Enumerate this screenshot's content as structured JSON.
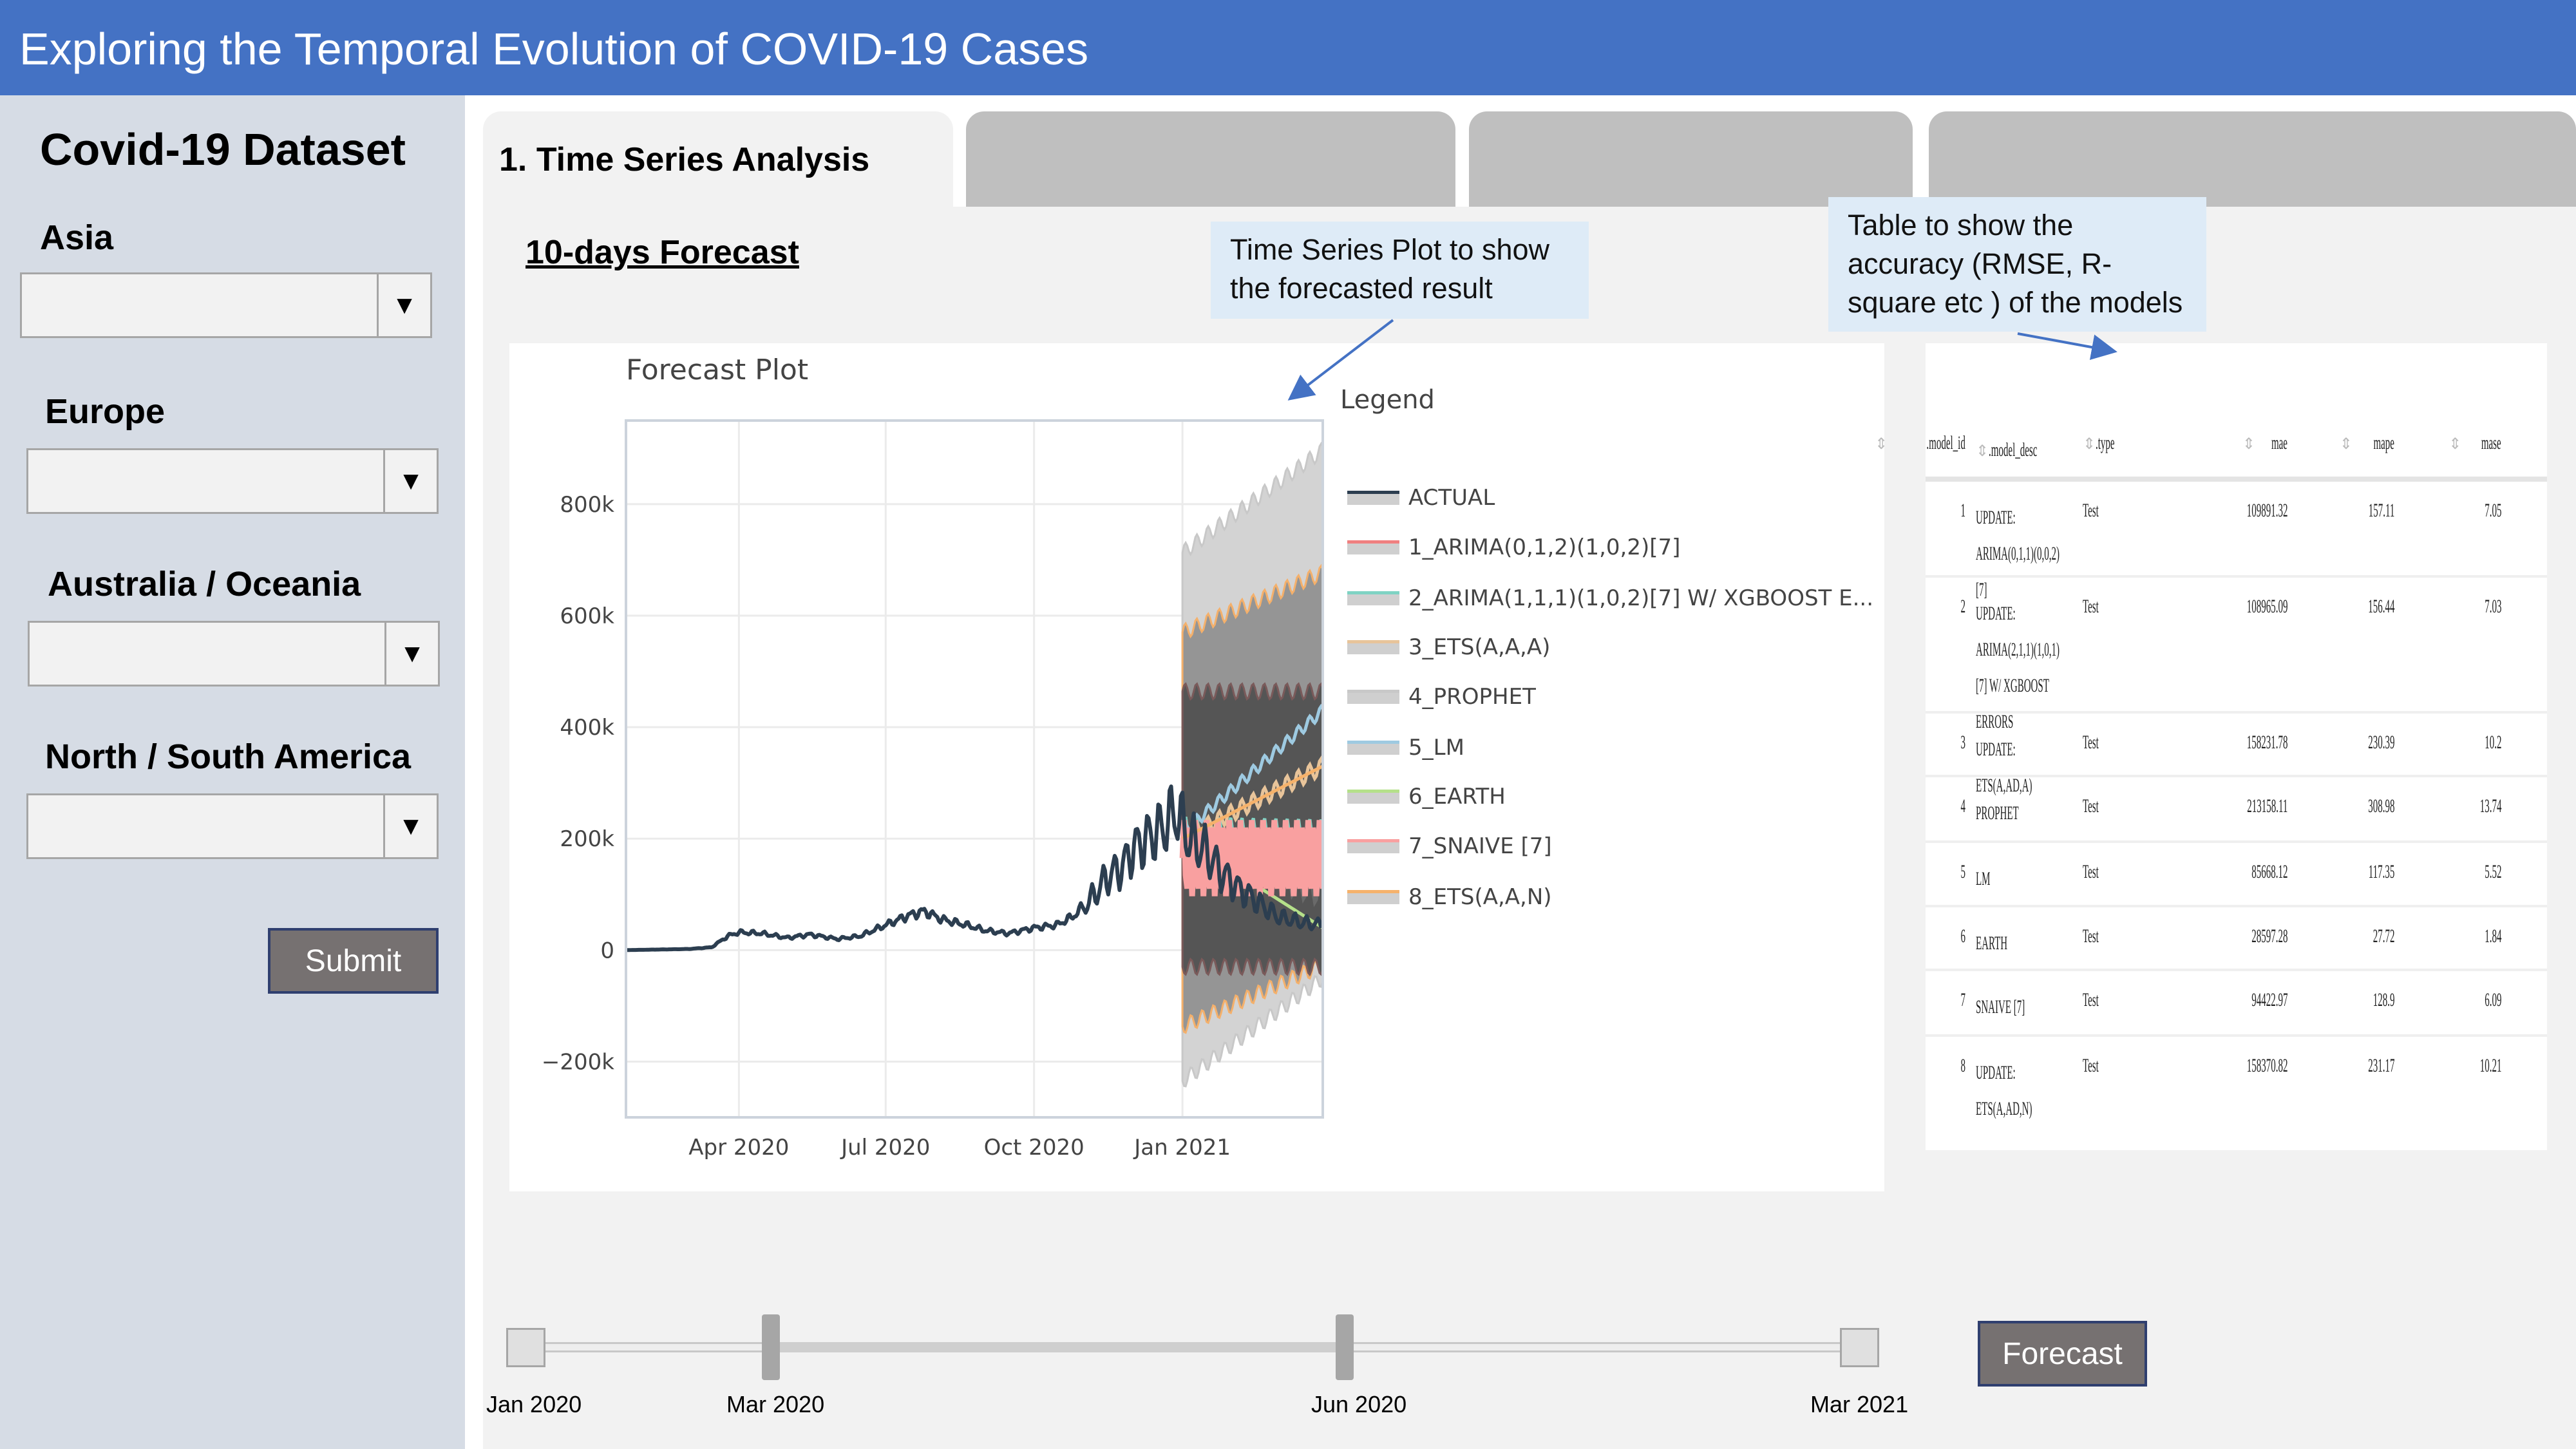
{
  "app": {
    "title": "Exploring the Temporal Evolution of COVID-19 Cases"
  },
  "sidebar": {
    "heading": "Covid-19 Dataset",
    "filters": [
      {
        "label": "Asia",
        "value": ""
      },
      {
        "label": "Europe",
        "value": ""
      },
      {
        "label": "Australia / Oceania",
        "value": ""
      },
      {
        "label": "North / South America",
        "value": ""
      }
    ],
    "dropdown_icon": "triangle-down",
    "submit_label": "Submit"
  },
  "tabs": [
    {
      "label": "1. Time Series Analysis",
      "active": true
    },
    {
      "label": ""
    },
    {
      "label": ""
    },
    {
      "label": ""
    }
  ],
  "main": {
    "section_title": "10-days Forecast",
    "annotations": [
      "Time Series Plot to show the forecasted result",
      "Table to show the accuracy (RMSE, R-square etc ) of the models"
    ],
    "forecast_label": "Forecast"
  },
  "legend": {
    "title": "Legend",
    "items": [
      {
        "label": "ACTUAL",
        "color": "#2C3E50"
      },
      {
        "label": "1_ARIMA(0,1,2)(1,0,2)[7]",
        "color": "#F08080"
      },
      {
        "label": "2_ARIMA(1,1,1)(1,0,2)[7] W/ XGBOOST E...",
        "color": "#7FD3C4"
      },
      {
        "label": "3_ETS(A,A,A)",
        "color": "#E8C49A"
      },
      {
        "label": "4_PROPHET",
        "color": "#C8C8C8"
      },
      {
        "label": "5_LM",
        "color": "#9ECAE1"
      },
      {
        "label": "6_EARTH",
        "color": "#B5E08A"
      },
      {
        "label": "7_SNAIVE [7]",
        "color": "#F9A0A0"
      },
      {
        "label": "8_ETS(A,A,N)",
        "color": "#F6B26B"
      }
    ]
  },
  "chart_data": {
    "type": "line",
    "title": "Forecast Plot",
    "x_range": [
      "2020-01-22",
      "2021-03-29"
    ],
    "ylim": [
      -300000,
      950000
    ],
    "x_ticks": [
      {
        "date": "2020-04-01",
        "label": "Apr 2020"
      },
      {
        "date": "2020-07-01",
        "label": "Jul 2020"
      },
      {
        "date": "2020-10-01",
        "label": "Oct 2020"
      },
      {
        "date": "2021-01-01",
        "label": "Jan 2021"
      }
    ],
    "y_ticks": [
      {
        "value": -200000,
        "label": "−200k"
      },
      {
        "value": 0,
        "label": "0"
      },
      {
        "value": 200000,
        "label": "200k"
      },
      {
        "value": 400000,
        "label": "400k"
      },
      {
        "value": 600000,
        "label": "600k"
      },
      {
        "value": 800000,
        "label": "800k"
      }
    ],
    "grid": true,
    "legend_placement": "right",
    "actual": [
      [
        "2020-01-22",
        0
      ],
      [
        "2020-03-01",
        2000
      ],
      [
        "2020-03-15",
        5000
      ],
      [
        "2020-03-25",
        25000
      ],
      [
        "2020-04-01",
        32000
      ],
      [
        "2020-04-15",
        30000
      ],
      [
        "2020-05-01",
        22000
      ],
      [
        "2020-05-15",
        28000
      ],
      [
        "2020-06-01",
        20000
      ],
      [
        "2020-06-15",
        25000
      ],
      [
        "2020-07-01",
        45000
      ],
      [
        "2020-07-15",
        62000
      ],
      [
        "2020-07-25",
        70000
      ],
      [
        "2020-08-05",
        55000
      ],
      [
        "2020-08-20",
        45000
      ],
      [
        "2020-09-01",
        35000
      ],
      [
        "2020-09-15",
        30000
      ],
      [
        "2020-10-01",
        40000
      ],
      [
        "2020-10-15",
        45000
      ],
      [
        "2020-10-25",
        60000
      ],
      [
        "2020-11-05",
        90000
      ],
      [
        "2020-11-15",
        130000
      ],
      [
        "2020-11-25",
        150000
      ],
      [
        "2020-12-01",
        180000
      ],
      [
        "2020-12-10",
        200000
      ],
      [
        "2020-12-20",
        220000
      ],
      [
        "2020-12-28",
        250000
      ],
      [
        "2021-01-05",
        200000
      ],
      [
        "2021-01-15",
        180000
      ],
      [
        "2021-01-25",
        140000
      ],
      [
        "2021-02-05",
        110000
      ],
      [
        "2021-02-15",
        90000
      ],
      [
        "2021-03-01",
        60000
      ],
      [
        "2021-03-15",
        50000
      ],
      [
        "2021-03-29",
        45000
      ]
    ],
    "forecast_start": "2021-01-01",
    "forecasts": [
      {
        "name": "1_ARIMA(0,1,2)(1,0,2)[7]",
        "start": 200000,
        "end": 190000,
        "weekly_amplitude": 40000
      },
      {
        "name": "2_ARIMA(1,1,1)(1,0,2)[7] W/ XGBOOST E...",
        "start": 200000,
        "end": 195000,
        "weekly_amplitude": 40000
      },
      {
        "name": "3_ETS(A,A,A)",
        "start": 200000,
        "end": 330000,
        "weekly_amplitude": 15000
      },
      {
        "name": "4_PROPHET",
        "start": 190000,
        "end": 110000,
        "weekly_amplitude": 30000
      },
      {
        "name": "5_LM",
        "start": 210000,
        "end": 430000,
        "weekly_amplitude": 10000
      },
      {
        "name": "6_EARTH",
        "start": 200000,
        "end": 40000,
        "weekly_amplitude": 0
      },
      {
        "name": "7_SNAIVE [7]",
        "start": 165000,
        "end": 165000,
        "weekly_amplitude": 70000
      },
      {
        "name": "8_ETS(A,A,N)",
        "start": 200000,
        "end": 330000,
        "weekly_amplitude": 0
      }
    ],
    "confidence_bands": [
      {
        "lower": [
          -235000,
          -50000
        ],
        "upper": [
          713000,
          897000
        ],
        "color": "#D3D3D3",
        "edge": "#C8C8C8"
      },
      {
        "lower": [
          -137000,
          -27000
        ],
        "upper": [
          570000,
          677000
        ],
        "color": "#8A8A8A",
        "edge": "#F4B06B"
      },
      {
        "lower": [
          -30000,
          -30000
        ],
        "upper": [
          464000,
          464000
        ],
        "color": "#4A4A4A",
        "edge": "#7A5A5A"
      }
    ]
  },
  "accuracy_table": {
    "columns": [
      ".model_id",
      ".model_desc",
      ".type",
      "mae",
      "mape",
      "mase"
    ],
    "rows": [
      [
        "1",
        "UPDATE: ARIMA(0,1,1)(0,0,2)[7]",
        "Test",
        "109891.32",
        "157.11",
        "7.05"
      ],
      [
        "2",
        "UPDATE: ARIMA(2,1,1)(1,0,1)[7] W/ XGBOOST ERRORS",
        "Test",
        "108965.09",
        "156.44",
        "7.03"
      ],
      [
        "3",
        "UPDATE: ETS(A,AD,A)",
        "Test",
        "158231.78",
        "230.39",
        "10.2"
      ],
      [
        "4",
        "PROPHET",
        "Test",
        "213158.11",
        "308.98",
        "13.74"
      ],
      [
        "5",
        "LM",
        "Test",
        "85668.12",
        "117.35",
        "5.52"
      ],
      [
        "6",
        "EARTH",
        "Test",
        "28597.28",
        "27.72",
        "1.84"
      ],
      [
        "7",
        "SNAIVE [7]",
        "Test",
        "94422.97",
        "128.9",
        "6.09"
      ],
      [
        "8",
        "UPDATE: ETS(A,AD,N)",
        "Test",
        "158370.82",
        "231.17",
        "10.21"
      ]
    ]
  },
  "date_slider": {
    "min_label": "Jan 2020",
    "max_label": "Mar 2021",
    "selected_start_label": "Mar 2020",
    "selected_end_label": "Jun 2020"
  }
}
